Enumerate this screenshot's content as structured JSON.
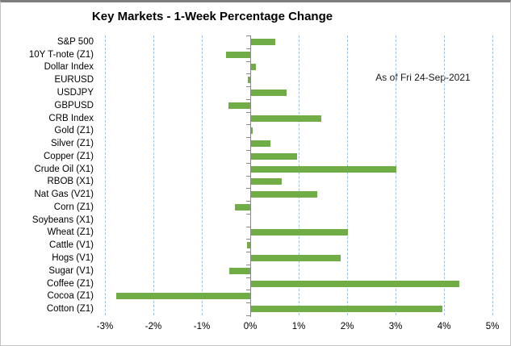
{
  "chart": {
    "title": "Key Markets - 1-Week Percentage Change",
    "annotation": "As of Fri 24-Sep-2021"
  },
  "chart_data": {
    "type": "bar",
    "orientation": "horizontal",
    "title": "Key Markets - 1-Week Percentage Change",
    "annotation": "As of Fri 24-Sep-2021",
    "value_unit": "percent",
    "categories": [
      "S&P 500",
      "10Y T-note (Z1)",
      "Dollar Index",
      "EURUSD",
      "USDJPY",
      "GBPUSD",
      "CRB Index",
      "Gold (Z1)",
      "Silver (Z1)",
      "Copper (Z1)",
      "Crude Oil (X1)",
      "RBOB (X1)",
      "Nat Gas (V21)",
      "Corn (Z1)",
      "Soybeans (X1)",
      "Wheat (Z1)",
      "Cattle (V1)",
      "Hogs (V1)",
      "Sugar (V1)",
      "Coffee (Z1)",
      "Cocoa (Z1)",
      "Cotton (Z1)"
    ],
    "values": [
      0.5,
      -0.5,
      0.1,
      -0.05,
      0.73,
      -0.45,
      1.45,
      0.03,
      0.4,
      0.95,
      3.0,
      0.63,
      1.37,
      -0.32,
      0.0,
      2.0,
      -0.06,
      1.85,
      -0.44,
      4.3,
      -2.77,
      3.95
    ],
    "x_axis": {
      "ticks": [
        {
          "value": -3,
          "label": "-3%"
        },
        {
          "value": -2,
          "label": "-2%"
        },
        {
          "value": -1,
          "label": "-1%"
        },
        {
          "value": 0,
          "label": "0%"
        },
        {
          "value": 1,
          "label": "1%"
        },
        {
          "value": 2,
          "label": "2%"
        },
        {
          "value": 3,
          "label": "3%"
        },
        {
          "value": 4,
          "label": "4%"
        },
        {
          "value": 5,
          "label": "5%"
        }
      ],
      "xlim": [
        -3.5,
        5.1
      ]
    },
    "grid": "vertical-dashed",
    "legend": "none",
    "colors": {
      "bar": "#70ad47",
      "gridline": "#9dc3e6",
      "axis": "#898989",
      "text": "#000000"
    }
  }
}
